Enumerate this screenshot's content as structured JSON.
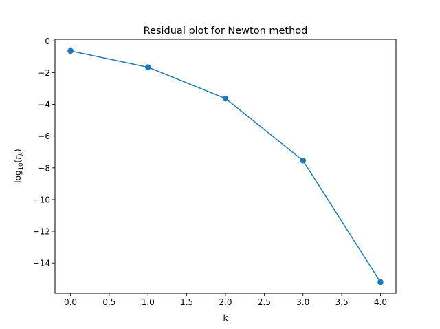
{
  "chart_data": {
    "type": "line",
    "title": "Residual plot for Newton method",
    "xlabel": "k",
    "ylabel_prefix": "log",
    "ylabel_base": "10",
    "ylabel_arg_open": "(",
    "ylabel_arg_var": "r",
    "ylabel_arg_sub": "k",
    "ylabel_arg_close": ")",
    "xlim": [
      -0.2,
      4.2
    ],
    "ylim": [
      -15.9,
      0.1
    ],
    "xticks": [
      {
        "value": 0.0,
        "label": "0.0"
      },
      {
        "value": 0.5,
        "label": "0.5"
      },
      {
        "value": 1.0,
        "label": "1.0"
      },
      {
        "value": 1.5,
        "label": "1.5"
      },
      {
        "value": 2.0,
        "label": "2.0"
      },
      {
        "value": 2.5,
        "label": "2.5"
      },
      {
        "value": 3.0,
        "label": "3.0"
      },
      {
        "value": 3.5,
        "label": "3.5"
      },
      {
        "value": 4.0,
        "label": "4.0"
      }
    ],
    "yticks": [
      {
        "value": 0,
        "label": "0"
      },
      {
        "value": -2,
        "label": "−2"
      },
      {
        "value": -4,
        "label": "−4"
      },
      {
        "value": -6,
        "label": "−6"
      },
      {
        "value": -8,
        "label": "−8"
      },
      {
        "value": -10,
        "label": "−10"
      },
      {
        "value": -12,
        "label": "−12"
      },
      {
        "value": -14,
        "label": "−14"
      }
    ],
    "grid": false,
    "series": [
      {
        "x": [
          0,
          1,
          2,
          3,
          4
        ],
        "values": [
          -0.63,
          -1.66,
          -3.63,
          -7.54,
          -15.2
        ],
        "color": "#1f77b4",
        "marker": "circle"
      }
    ]
  }
}
